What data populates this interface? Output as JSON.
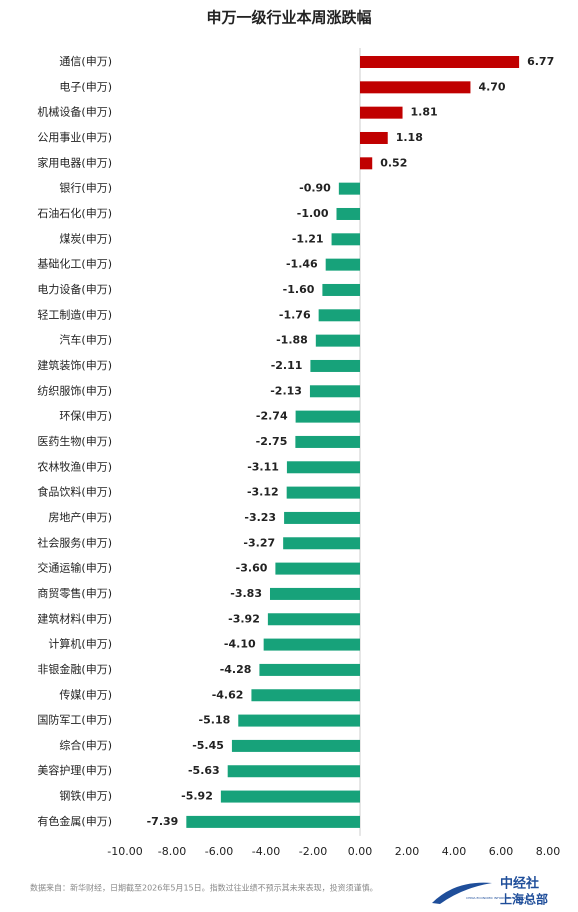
{
  "chart_data": {
    "type": "bar",
    "orientation": "horizontal",
    "title": "申万一级行业本周涨跌幅",
    "categories": [
      "通信(申万)",
      "电子(申万)",
      "机械设备(申万)",
      "公用事业(申万)",
      "家用电器(申万)",
      "银行(申万)",
      "石油石化(申万)",
      "煤炭(申万)",
      "基础化工(申万)",
      "电力设备(申万)",
      "轻工制造(申万)",
      "汽车(申万)",
      "建筑装饰(申万)",
      "纺织服饰(申万)",
      "环保(申万)",
      "医药生物(申万)",
      "农林牧渔(申万)",
      "食品饮料(申万)",
      "房地产(申万)",
      "社会服务(申万)",
      "交通运输(申万)",
      "商贸零售(申万)",
      "建筑材料(申万)",
      "计算机(申万)",
      "非银金融(申万)",
      "传媒(申万)",
      "国防军工(申万)",
      "综合(申万)",
      "美容护理(申万)",
      "钢铁(申万)",
      "有色金属(申万)"
    ],
    "values": [
      6.77,
      4.7,
      1.81,
      1.18,
      0.52,
      -0.9,
      -1.0,
      -1.21,
      -1.46,
      -1.6,
      -1.76,
      -1.88,
      -2.11,
      -2.13,
      -2.74,
      -2.75,
      -3.11,
      -3.12,
      -3.23,
      -3.27,
      -3.6,
      -3.83,
      -3.92,
      -4.1,
      -4.28,
      -4.62,
      -5.18,
      -5.45,
      -5.63,
      -5.92,
      -7.39
    ],
    "value_labels": [
      "6.77",
      "4.70",
      "1.81",
      "1.18",
      "0.52",
      "-0.90",
      "-1.00",
      "-1.21",
      "-1.46",
      "-1.60",
      "-1.76",
      "-1.88",
      "-2.11",
      "-2.13",
      "-2.74",
      "-2.75",
      "-3.11",
      "-3.12",
      "-3.23",
      "-3.27",
      "-3.60",
      "-3.83",
      "-3.92",
      "-4.10",
      "-4.28",
      "-4.62",
      "-5.18",
      "-5.45",
      "-5.63",
      "-5.92",
      "-7.39"
    ],
    "positive_color": "#c00000",
    "negative_color": "#17a27a",
    "xlim": [
      -10,
      8
    ],
    "xticks": [
      {
        "value": -10,
        "label": "-10.00"
      },
      {
        "value": -8,
        "label": "-8.00"
      },
      {
        "value": -6,
        "label": "-6.00"
      },
      {
        "value": -4,
        "label": "-4.00"
      },
      {
        "value": -2,
        "label": "-2.00"
      },
      {
        "value": 0,
        "label": "0.00"
      },
      {
        "value": 2,
        "label": "2.00"
      },
      {
        "value": 4,
        "label": "4.00"
      },
      {
        "value": 6,
        "label": "6.00"
      },
      {
        "value": 8,
        "label": "8.00"
      }
    ],
    "grid": false
  },
  "footer": {
    "source": "数据来自：新华财经，日期截至2026年5月15日。指数过往业绩不预示其未来表现，投资须谨慎。",
    "logo_name": "中经社",
    "logo_sub": "上海总部",
    "logo_en": "CHINA ECONOMIC INFORMATION SERVICE"
  }
}
